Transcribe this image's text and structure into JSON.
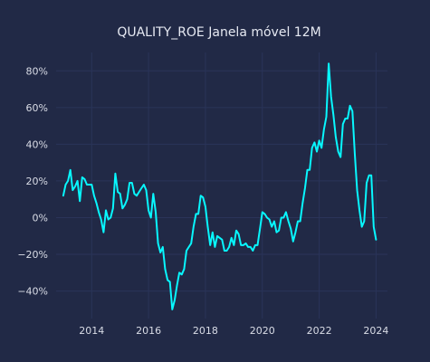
{
  "chart_data": {
    "type": "line",
    "title": "QUALITY_ROE Janela móvel 12M",
    "xlabel": "",
    "ylabel": "",
    "xlim": [
      2012.75,
      2024.4
    ],
    "ylim": [
      -0.55,
      0.9
    ],
    "x_ticks": [
      2014,
      2016,
      2018,
      2020,
      2022,
      2024
    ],
    "x_tick_labels": [
      "2014",
      "2016",
      "2018",
      "2020",
      "2022",
      "2024"
    ],
    "y_ticks": [
      -0.4,
      -0.2,
      0.0,
      0.2,
      0.4,
      0.6,
      0.8
    ],
    "y_tick_labels": [
      "−40%",
      "−20%",
      "0%",
      "20%",
      "40%",
      "60%",
      "80%"
    ],
    "grid": true,
    "line_color": "#08F7FE",
    "background": "#212946",
    "grid_color": "#2A3459",
    "x": [
      2013.0,
      2013.083,
      2013.167,
      2013.25,
      2013.333,
      2013.417,
      2013.5,
      2013.583,
      2013.667,
      2013.75,
      2013.833,
      2013.917,
      2014.0,
      2014.083,
      2014.167,
      2014.25,
      2014.333,
      2014.417,
      2014.5,
      2014.583,
      2014.667,
      2014.75,
      2014.833,
      2014.917,
      2015.0,
      2015.083,
      2015.167,
      2015.25,
      2015.333,
      2015.417,
      2015.5,
      2015.583,
      2015.667,
      2015.75,
      2015.833,
      2015.917,
      2016.0,
      2016.083,
      2016.167,
      2016.25,
      2016.333,
      2016.417,
      2016.5,
      2016.583,
      2016.667,
      2016.75,
      2016.833,
      2016.917,
      2017.0,
      2017.083,
      2017.167,
      2017.25,
      2017.333,
      2017.417,
      2017.5,
      2017.583,
      2017.667,
      2017.75,
      2017.833,
      2017.917,
      2018.0,
      2018.083,
      2018.167,
      2018.25,
      2018.333,
      2018.417,
      2018.5,
      2018.583,
      2018.667,
      2018.75,
      2018.833,
      2018.917,
      2019.0,
      2019.083,
      2019.167,
      2019.25,
      2019.333,
      2019.417,
      2019.5,
      2019.583,
      2019.667,
      2019.75,
      2019.833,
      2019.917,
      2020.0,
      2020.083,
      2020.167,
      2020.25,
      2020.333,
      2020.417,
      2020.5,
      2020.583,
      2020.667,
      2020.75,
      2020.833,
      2020.917,
      2021.0,
      2021.083,
      2021.167,
      2021.25,
      2021.333,
      2021.417,
      2021.5,
      2021.583,
      2021.667,
      2021.75,
      2021.833,
      2021.917,
      2022.0,
      2022.083,
      2022.167,
      2022.25,
      2022.333,
      2022.417,
      2022.5,
      2022.583,
      2022.667,
      2022.75,
      2022.833,
      2022.917,
      2023.0,
      2023.083,
      2023.167,
      2023.25,
      2023.333,
      2023.417,
      2023.5,
      2023.583,
      2023.667,
      2023.75,
      2023.833,
      2023.917,
      2024.0
    ],
    "series": [
      {
        "values": [
          0.12,
          0.18,
          0.2,
          0.26,
          0.15,
          0.17,
          0.2,
          0.09,
          0.22,
          0.21,
          0.18,
          0.18,
          0.18,
          0.12,
          0.08,
          0.03,
          -0.01,
          -0.08,
          0.04,
          -0.01,
          0.0,
          0.05,
          0.24,
          0.14,
          0.13,
          0.05,
          0.07,
          0.1,
          0.19,
          0.19,
          0.13,
          0.12,
          0.14,
          0.16,
          0.18,
          0.15,
          0.04,
          0.0,
          0.13,
          0.03,
          -0.14,
          -0.19,
          -0.16,
          -0.28,
          -0.34,
          -0.35,
          -0.5,
          -0.45,
          -0.37,
          -0.3,
          -0.31,
          -0.28,
          -0.18,
          -0.16,
          -0.14,
          -0.05,
          0.02,
          0.02,
          0.12,
          0.11,
          0.06,
          -0.05,
          -0.15,
          -0.08,
          -0.16,
          -0.1,
          -0.11,
          -0.12,
          -0.18,
          -0.18,
          -0.16,
          -0.11,
          -0.15,
          -0.07,
          -0.09,
          -0.15,
          -0.15,
          -0.14,
          -0.16,
          -0.16,
          -0.18,
          -0.15,
          -0.15,
          -0.06,
          0.03,
          0.02,
          0.0,
          -0.01,
          -0.05,
          -0.02,
          -0.08,
          -0.07,
          0.0,
          0.0,
          0.03,
          -0.02,
          -0.06,
          -0.13,
          -0.08,
          -0.02,
          -0.02,
          0.08,
          0.16,
          0.26,
          0.26,
          0.38,
          0.41,
          0.36,
          0.42,
          0.38,
          0.48,
          0.55,
          0.84,
          0.66,
          0.56,
          0.44,
          0.36,
          0.33,
          0.51,
          0.54,
          0.54,
          0.61,
          0.58,
          0.35,
          0.15,
          0.04,
          -0.05,
          -0.02,
          0.19,
          0.23,
          0.23,
          -0.05,
          -0.12
        ]
      }
    ]
  }
}
